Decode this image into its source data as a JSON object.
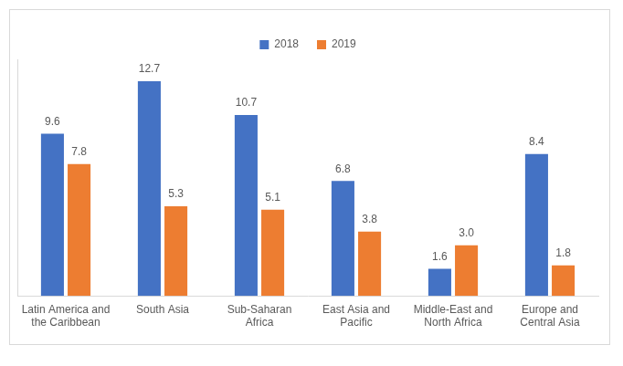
{
  "chart_data": {
    "type": "bar",
    "categories": [
      "Latin America and the Caribbean",
      "South Asia",
      "Sub-Saharan Africa",
      "East Asia and Pacific",
      "Middle-East and North Africa",
      "Europe and Central Asia"
    ],
    "series": [
      {
        "name": "2018",
        "color": "#4472c4",
        "values": [
          9.6,
          12.7,
          10.7,
          6.8,
          1.6,
          8.4
        ],
        "value_labels": [
          "9.6",
          "12.7",
          "10.7",
          "6.8",
          "1.6",
          "8.4"
        ]
      },
      {
        "name": "2019",
        "color": "#ed7d31",
        "values": [
          7.8,
          5.3,
          5.1,
          3.8,
          3.0,
          1.8
        ],
        "value_labels": [
          "7.8",
          "5.3",
          "5.1",
          "3.8",
          "3.0",
          "1.8"
        ]
      }
    ],
    "ylim": [
      0,
      14
    ],
    "grid": false,
    "legend": "top",
    "data_labels": true,
    "tick_labels": "x"
  }
}
